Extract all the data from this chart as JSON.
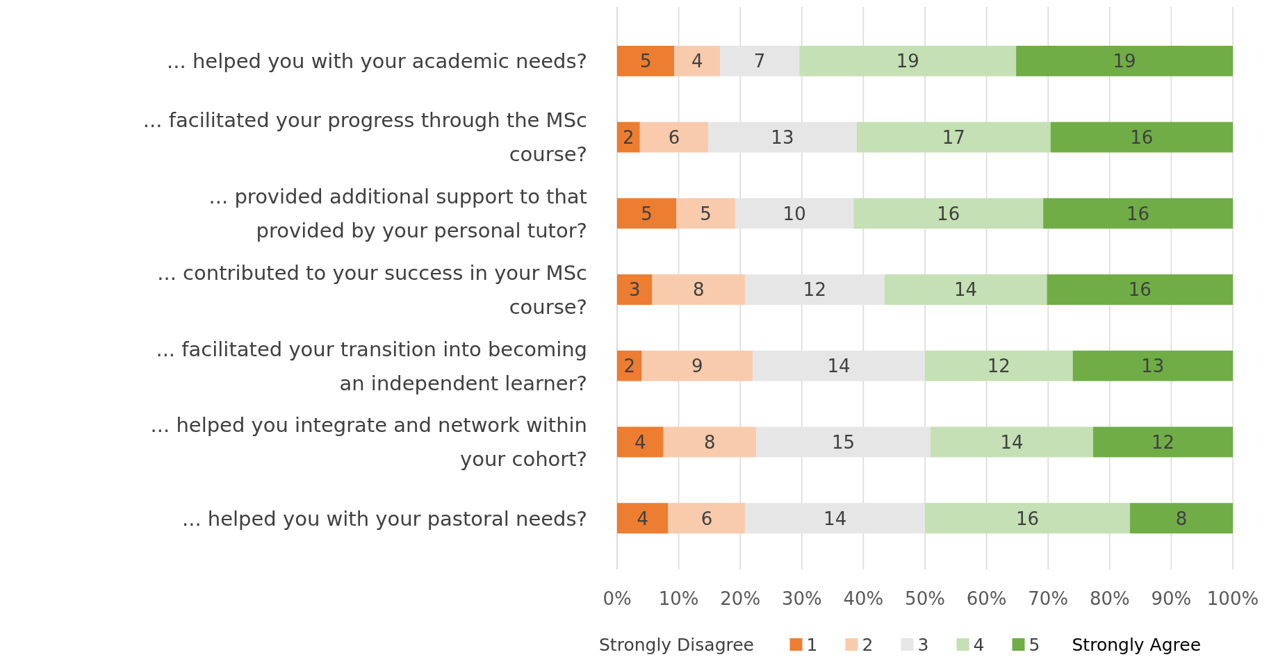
{
  "chart_data": {
    "type": "bar",
    "orientation": "horizontal",
    "stacked": true,
    "categories": [
      "... helped you with your academic needs?",
      "... facilitated your progress through the MSc course?",
      "... provided additional support to that provided by your personal tutor?",
      "... contributed to your success in your MSc course?",
      "... facilitated your transition into becoming an independent learner?",
      "... helped you integrate and network within your cohort?",
      "... helped you with your pastoral needs?"
    ],
    "series": [
      {
        "name": "1",
        "color": "#ed7d31",
        "values": [
          9.3,
          3.7,
          9.6,
          5.7,
          4,
          7.5,
          8.3
        ]
      },
      {
        "name": "2",
        "color": "#f8cbad",
        "values": [
          7.4,
          11.1,
          9.6,
          15.1,
          18,
          15.1,
          12.5
        ]
      },
      {
        "name": "3",
        "color": "#e7e6e6",
        "values": [
          12.9,
          24.1,
          19.2,
          22.6,
          28,
          28.3,
          29.2
        ]
      },
      {
        "name": "4",
        "color": "#c5e0b4",
        "values": [
          35.2,
          31.5,
          30.8,
          26.4,
          24,
          26.4,
          33.3
        ]
      },
      {
        "name": "5",
        "color": "#70ad47",
        "values": [
          35.2,
          29.6,
          30.8,
          30.2,
          26,
          22.7,
          16.7
        ]
      }
    ],
    "xlim": [
      0,
      100
    ],
    "xticks": [
      {
        "value": 0,
        "label": "0%"
      },
      {
        "value": 10,
        "label": "10%"
      },
      {
        "value": 20,
        "label": "20%"
      },
      {
        "value": 30,
        "label": "30%"
      },
      {
        "value": 40,
        "label": "40%"
      },
      {
        "value": 50,
        "label": "50%"
      },
      {
        "value": 60,
        "label": "60%"
      },
      {
        "value": 70,
        "label": "70%"
      },
      {
        "value": 80,
        "label": "80%"
      },
      {
        "value": 90,
        "label": "90%"
      },
      {
        "value": 100,
        "label": "100%"
      }
    ],
    "grid": "x",
    "legend": "bottom",
    "annotations": [
      "Strongly Disagree",
      "Strongly Agree",
      "5",
      "4",
      "7",
      "19",
      "19",
      "2",
      "6",
      "13",
      "17",
      "16",
      "5",
      "5",
      "10",
      "16",
      "16",
      "3",
      "8",
      "12",
      "14",
      "16",
      "2",
      "9",
      "14",
      "12",
      "13",
      "4",
      "8",
      "15",
      "14",
      "12",
      "4",
      "6",
      "14",
      "16",
      "8"
    ]
  }
}
